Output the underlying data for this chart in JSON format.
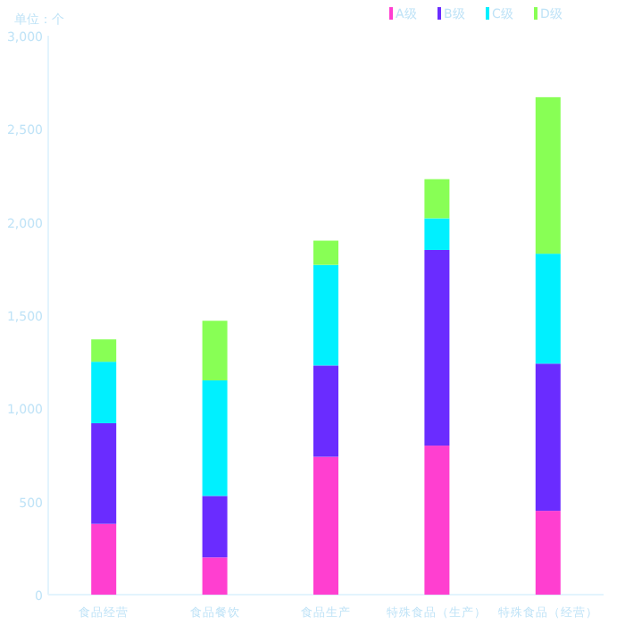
{
  "chart_data": {
    "type": "bar",
    "ylabel": "单位：个",
    "categories": [
      "食品经营",
      "食品餐饮",
      "食品生产",
      "特殊食品（生产）",
      "特殊食品（经营）"
    ],
    "stacked": true,
    "legend": "top right",
    "ylim": [
      0,
      3000
    ],
    "yticks": [
      0,
      500,
      {
        "value": 1000,
        "label": "1,000"
      },
      {
        "value": 1500,
        "label": "1,500"
      },
      {
        "value": 2000,
        "label": "2,000"
      },
      {
        "value": 2500,
        "label": "2,500"
      },
      {
        "value": 3000,
        "label": "3,000"
      }
    ],
    "series": [
      {
        "name": "A级",
        "color": "#ff3fd0",
        "values": [
          380,
          200,
          740,
          800,
          450
        ]
      },
      {
        "name": "B级",
        "color": "#6a2cff",
        "values": [
          540,
          330,
          490,
          1050,
          790
        ]
      },
      {
        "name": "C级",
        "color": "#00f0ff",
        "values": [
          330,
          620,
          540,
          170,
          590
        ]
      },
      {
        "name": "D级",
        "color": "#88ff55",
        "values": [
          120,
          320,
          130,
          210,
          840
        ]
      }
    ]
  }
}
